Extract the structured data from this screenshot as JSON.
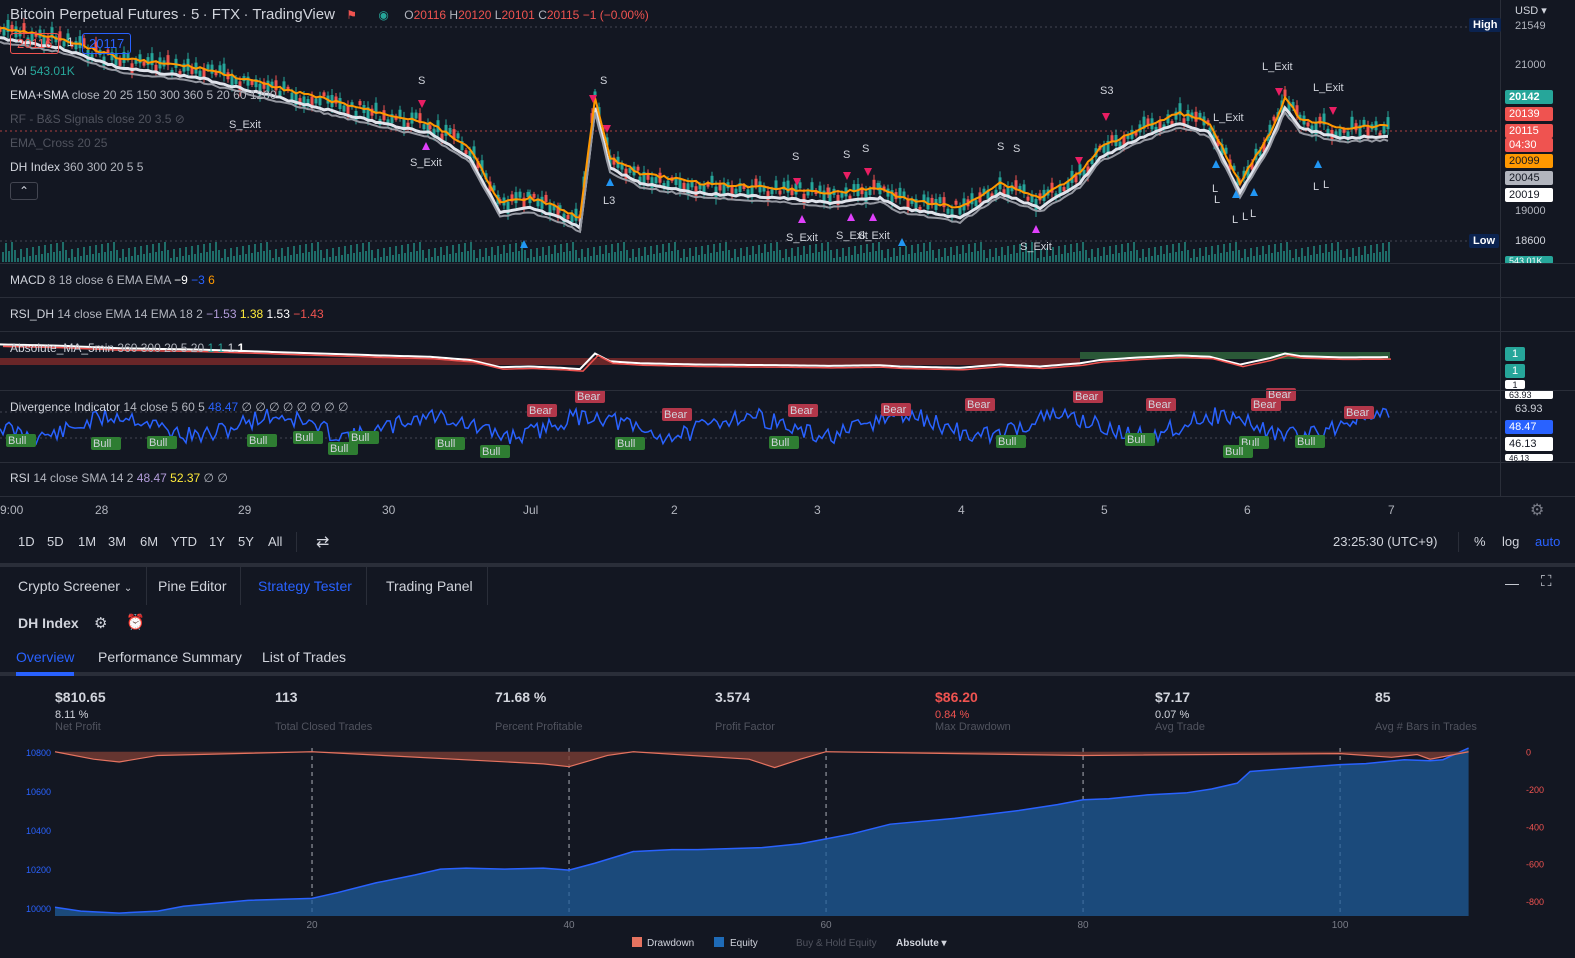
{
  "header": {
    "symbol": "Bitcoin Perpetual Futures",
    "interval": "5",
    "exchange": "FTX",
    "platform": "TradingView",
    "ohlc": {
      "o_label": "O",
      "o": "20116",
      "h_label": "H",
      "h": "20120",
      "l_label": "L",
      "l": "20101",
      "c_label": "C",
      "c": "20115",
      "change": "−1 (−0.00%)"
    },
    "sell_price": "20116",
    "spread": "1",
    "buy_price": "20117",
    "currency": "USD"
  },
  "indicators": {
    "vol": {
      "name": "Vol",
      "value": "543.01K"
    },
    "ema_sma": {
      "name": "EMA+SMA",
      "params": "close 20 25 150 300 360 5 20 60 1200"
    },
    "rf": {
      "name": "RF - B&S Signals",
      "params": "close 20 3.5"
    },
    "ema_cross": {
      "name": "EMA_Cross",
      "params": "20 25"
    },
    "dh_index": {
      "name": "DH Index",
      "params": "360 300 20 5 5"
    },
    "macd": {
      "name": "MACD",
      "params": "8 18 close 6 EMA EMA",
      "v1": "−9",
      "v2": "−3",
      "v3": "6"
    },
    "rsi_dh": {
      "name": "RSI_DH",
      "params": "14 close EMA 14 EMA 18 2",
      "v1": "−1.53",
      "v2": "1.38",
      "v3": "1.53",
      "v4": "−1.43"
    },
    "abs_ma": {
      "name": "Absolute_MA_5min",
      "params": "360 300 20 5 20",
      "v1": "1",
      "v2": "1",
      "v3": "1",
      "v4": "1"
    },
    "divergence": {
      "name": "Divergence Indicator",
      "params": "14 close 5 60 5",
      "v1": "48.47",
      "tail": "∅ ∅ ∅ ∅ ∅ ∅ ∅ ∅"
    },
    "rsi": {
      "name": "RSI",
      "params": "14 close SMA 14 2",
      "v1": "48.47",
      "v2": "52.37",
      "v3": "∅",
      "v4": "∅"
    }
  },
  "price_scale": {
    "high_label": "High",
    "high_value": "21549",
    "tick_21000": "21000",
    "p20142": "20142",
    "p20139": "20139",
    "p20115": "20115",
    "countdown": "04:30",
    "p20099": "20099",
    "p20045": "20045",
    "p20019": "20019",
    "tick_19000": "19000",
    "low_label": "Low",
    "low_value": "18600",
    "vol_value": "543.01K",
    "abs1": "1",
    "abs2": "1",
    "abs3": "1",
    "div_63a": "63.93",
    "div_63b": "63.93",
    "div_48": "48.47",
    "div_46": "46.13",
    "div_46b": "46.13"
  },
  "chart_markers": {
    "s": "S",
    "s3": "S3",
    "l3": "L3",
    "l": "L",
    "s_exit": "S_Exit",
    "l_exit": "L_Exit",
    "bear": "Bear",
    "bull": "Bull"
  },
  "time_axis": [
    "9:00",
    "28",
    "29",
    "30",
    "Jul",
    "2",
    "3",
    "4",
    "5",
    "6",
    "7"
  ],
  "range_buttons": [
    "1D",
    "5D",
    "1M",
    "3M",
    "6M",
    "YTD",
    "1Y",
    "5Y",
    "All"
  ],
  "clock": "23:25:30 (UTC+9)",
  "scale_opts": {
    "percent": "%",
    "log": "log",
    "auto": "auto"
  },
  "bottom_tabs": [
    "Crypto Screener",
    "Pine Editor",
    "Strategy Tester",
    "Trading Panel"
  ],
  "strategy": {
    "name": "DH Index",
    "subtabs": [
      "Overview",
      "Performance Summary",
      "List of Trades"
    ],
    "stats": [
      {
        "value": "$810.65",
        "sub": "8.11 %",
        "label": "Net Profit"
      },
      {
        "value": "113",
        "sub": "",
        "label": "Total Closed Trades"
      },
      {
        "value": "71.68 %",
        "sub": "",
        "label": "Percent Profitable"
      },
      {
        "value": "3.574",
        "sub": "",
        "label": "Profit Factor"
      },
      {
        "value": "$86.20",
        "sub": "0.84 %",
        "label": "Max Drawdown"
      },
      {
        "value": "$7.17",
        "sub": "0.07 %",
        "label": "Avg Trade"
      },
      {
        "value": "85",
        "sub": "",
        "label": "Avg # Bars in Trades"
      }
    ],
    "legend": {
      "drawdown": "Drawdown",
      "equity": "Equity",
      "buyhold": "Buy & Hold Equity",
      "mode": "Absolute"
    }
  },
  "chart_data": {
    "type": "area",
    "x_ticks": [
      "20",
      "40",
      "60",
      "80",
      "100"
    ],
    "left_ticks": [
      "10800",
      "10600",
      "10400",
      "10200",
      "10000"
    ],
    "right_ticks": [
      "0",
      "-200",
      "-400",
      "-600",
      "-800"
    ],
    "ylim_left": [
      9960,
      10820
    ],
    "ylim_right": [
      -880,
      20
    ],
    "equity": [
      [
        0,
        10005
      ],
      [
        2,
        9985
      ],
      [
        5,
        9975
      ],
      [
        8,
        9985
      ],
      [
        10,
        10010
      ],
      [
        15,
        10040
      ],
      [
        20,
        10050
      ],
      [
        22,
        10080
      ],
      [
        25,
        10130
      ],
      [
        28,
        10170
      ],
      [
        30,
        10200
      ],
      [
        32,
        10205
      ],
      [
        35,
        10200
      ],
      [
        38,
        10205
      ],
      [
        40,
        10195
      ],
      [
        42,
        10230
      ],
      [
        45,
        10290
      ],
      [
        48,
        10300
      ],
      [
        50,
        10300
      ],
      [
        55,
        10310
      ],
      [
        58,
        10330
      ],
      [
        60,
        10355
      ],
      [
        62,
        10380
      ],
      [
        65,
        10430
      ],
      [
        70,
        10460
      ],
      [
        75,
        10500
      ],
      [
        78,
        10530
      ],
      [
        80,
        10555
      ],
      [
        82,
        10560
      ],
      [
        85,
        10580
      ],
      [
        88,
        10590
      ],
      [
        90,
        10610
      ],
      [
        92,
        10640
      ],
      [
        93,
        10700
      ],
      [
        95,
        10710
      ],
      [
        98,
        10725
      ],
      [
        100,
        10735
      ],
      [
        102,
        10740
      ],
      [
        105,
        10760
      ],
      [
        107,
        10755
      ],
      [
        108,
        10760
      ],
      [
        110,
        10820
      ]
    ],
    "drawdown": [
      [
        0,
        0
      ],
      [
        3,
        -40
      ],
      [
        5,
        -55
      ],
      [
        8,
        -20
      ],
      [
        20,
        0
      ],
      [
        38,
        -65
      ],
      [
        40,
        -80
      ],
      [
        43,
        -20
      ],
      [
        45,
        0
      ],
      [
        54,
        -40
      ],
      [
        56,
        -85
      ],
      [
        58,
        -40
      ],
      [
        60,
        0
      ],
      [
        80,
        -20
      ],
      [
        100,
        -10
      ],
      [
        104,
        -30
      ],
      [
        106,
        -15
      ],
      [
        107,
        -40
      ],
      [
        110,
        0
      ]
    ]
  },
  "colors": {
    "bg": "#131722",
    "up": "#26a69a",
    "down": "#ef5350",
    "accent": "#2962ff",
    "ema_orange": "#ff9800",
    "sma_white": "#e0e3eb",
    "magenta": "#e040fb",
    "drawdown": "#e57360",
    "equity": "#1f5c99"
  }
}
